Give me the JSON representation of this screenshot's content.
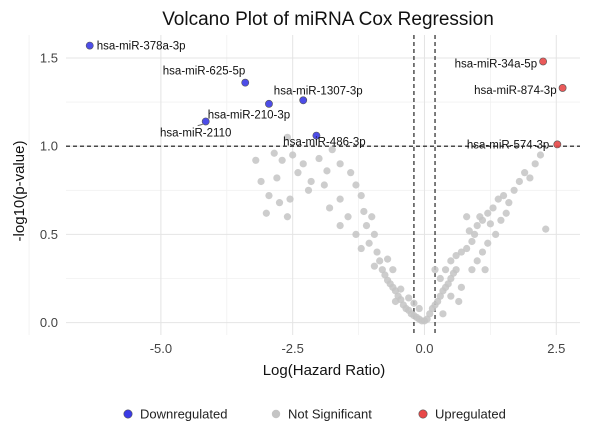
{
  "chart_data": {
    "type": "scatter",
    "title": "Volcano Plot of miRNA Cox Regression",
    "xlabel": "Log(Hazard Ratio)",
    "ylabel": "-log10(p-value)",
    "xlim": [
      -6.8,
      2.95
    ],
    "ylim": [
      -0.07,
      1.63
    ],
    "xticks": [
      -5.0,
      -2.5,
      0.0,
      2.5
    ],
    "xtick_labels": [
      "-5.0",
      "-2.5",
      "0.0",
      "2.5"
    ],
    "yticks": [
      0.0,
      0.5,
      1.0,
      1.5
    ],
    "ytick_labels": [
      "0.0",
      "0.5",
      "1.0",
      "1.5"
    ],
    "grid": true,
    "threshold_lines": {
      "vertical": [
        -0.2,
        0.2
      ],
      "horizontal": [
        1.0
      ]
    },
    "legend": {
      "position": "bottom",
      "entries": [
        {
          "name": "Downregulated",
          "color": "#3a3ae6"
        },
        {
          "name": "Not Significant",
          "color": "#c4c4c4"
        },
        {
          "name": "Upregulated",
          "color": "#e84848"
        }
      ]
    },
    "series": [
      {
        "name": "Downregulated",
        "color": "#3a3ae6",
        "points": [
          {
            "x": -6.35,
            "y": 1.57,
            "label": "hsa-miR-378a-3p"
          },
          {
            "x": -3.4,
            "y": 1.36,
            "label": "hsa-miR-625-5p"
          },
          {
            "x": -2.95,
            "y": 1.24,
            "label": ""
          },
          {
            "x": -2.3,
            "y": 1.26,
            "label": "hsa-miR-1307-3p"
          },
          {
            "x": -4.15,
            "y": 1.14,
            "label": "hsa-miR-210-3p"
          },
          {
            "x": -2.05,
            "y": 1.06,
            "label": "hsa-miR-486-3p"
          }
        ],
        "extra_labels": [
          "hsa-miR-2110"
        ]
      },
      {
        "name": "Upregulated",
        "color": "#e84848",
        "points": [
          {
            "x": 2.25,
            "y": 1.48,
            "label": "hsa-miR-34a-5p"
          },
          {
            "x": 2.62,
            "y": 1.33,
            "label": "hsa-miR-874-3p"
          },
          {
            "x": 2.52,
            "y": 1.01,
            "label": "hsa-miR-574-3p"
          }
        ]
      },
      {
        "name": "Not Significant",
        "color": "#c4c4c4",
        "points": [
          {
            "x": -2.6,
            "y": 1.05
          },
          {
            "x": -2.85,
            "y": 0.96
          },
          {
            "x": -2.7,
            "y": 0.92
          },
          {
            "x": -2.5,
            "y": 0.95
          },
          {
            "x": -2.3,
            "y": 0.9
          },
          {
            "x": -2.0,
            "y": 0.93
          },
          {
            "x": -1.75,
            "y": 0.98
          },
          {
            "x": -1.6,
            "y": 0.9
          },
          {
            "x": -2.4,
            "y": 0.85
          },
          {
            "x": -2.8,
            "y": 0.82
          },
          {
            "x": -2.15,
            "y": 0.8
          },
          {
            "x": -1.85,
            "y": 0.86
          },
          {
            "x": -2.95,
            "y": 0.72
          },
          {
            "x": -2.75,
            "y": 0.68
          },
          {
            "x": -2.55,
            "y": 0.7
          },
          {
            "x": -2.2,
            "y": 0.75
          },
          {
            "x": -1.9,
            "y": 0.78
          },
          {
            "x": -1.6,
            "y": 0.7
          },
          {
            "x": -1.4,
            "y": 0.85
          },
          {
            "x": -1.3,
            "y": 0.78
          },
          {
            "x": -1.2,
            "y": 0.72
          },
          {
            "x": -1.15,
            "y": 0.63
          },
          {
            "x": -1.0,
            "y": 0.6
          },
          {
            "x": -1.1,
            "y": 0.55
          },
          {
            "x": -0.95,
            "y": 0.5
          },
          {
            "x": -1.05,
            "y": 0.45
          },
          {
            "x": -0.9,
            "y": 0.4
          },
          {
            "x": -0.85,
            "y": 0.35
          },
          {
            "x": -0.8,
            "y": 0.3
          },
          {
            "x": -0.75,
            "y": 0.27
          },
          {
            "x": -0.7,
            "y": 0.24
          },
          {
            "x": -0.6,
            "y": 0.2
          },
          {
            "x": -0.55,
            "y": 0.18
          },
          {
            "x": -0.5,
            "y": 0.15
          },
          {
            "x": -0.45,
            "y": 0.13
          },
          {
            "x": -0.4,
            "y": 0.1
          },
          {
            "x": -0.35,
            "y": 0.08
          },
          {
            "x": -0.3,
            "y": 0.07
          },
          {
            "x": -0.25,
            "y": 0.05
          },
          {
            "x": -0.2,
            "y": 0.04
          },
          {
            "x": -0.15,
            "y": 0.03
          },
          {
            "x": -0.1,
            "y": 0.02
          },
          {
            "x": -0.05,
            "y": 0.01
          },
          {
            "x": 0.0,
            "y": 0.01
          },
          {
            "x": 0.05,
            "y": 0.02
          },
          {
            "x": -0.65,
            "y": 0.22
          },
          {
            "x": -0.55,
            "y": 0.12
          },
          {
            "x": -0.45,
            "y": 0.19
          },
          {
            "x": -0.3,
            "y": 0.14
          },
          {
            "x": -0.2,
            "y": 0.11
          },
          {
            "x": -0.1,
            "y": 0.08
          },
          {
            "x": -1.3,
            "y": 0.5
          },
          {
            "x": -1.2,
            "y": 0.42
          },
          {
            "x": -1.45,
            "y": 0.6
          },
          {
            "x": -1.6,
            "y": 0.55
          },
          {
            "x": -3.2,
            "y": 0.92
          },
          {
            "x": -3.1,
            "y": 0.8
          },
          {
            "x": -3.0,
            "y": 0.62
          },
          {
            "x": -2.6,
            "y": 0.6
          },
          {
            "x": -1.8,
            "y": 0.65
          },
          {
            "x": -0.95,
            "y": 0.32
          },
          {
            "x": -0.7,
            "y": 0.36
          },
          {
            "x": -0.6,
            "y": 0.3
          },
          {
            "x": 0.1,
            "y": 0.05
          },
          {
            "x": 0.15,
            "y": 0.08
          },
          {
            "x": 0.2,
            "y": 0.1
          },
          {
            "x": 0.25,
            "y": 0.12
          },
          {
            "x": 0.3,
            "y": 0.15
          },
          {
            "x": 0.35,
            "y": 0.18
          },
          {
            "x": 0.4,
            "y": 0.2
          },
          {
            "x": 0.45,
            "y": 0.22
          },
          {
            "x": 0.5,
            "y": 0.25
          },
          {
            "x": 0.55,
            "y": 0.28
          },
          {
            "x": 0.6,
            "y": 0.3
          },
          {
            "x": 0.3,
            "y": 0.25
          },
          {
            "x": 0.4,
            "y": 0.3
          },
          {
            "x": 0.5,
            "y": 0.35
          },
          {
            "x": 0.6,
            "y": 0.38
          },
          {
            "x": 0.7,
            "y": 0.4
          },
          {
            "x": 0.8,
            "y": 0.42
          },
          {
            "x": 0.9,
            "y": 0.46
          },
          {
            "x": 0.95,
            "y": 0.5
          },
          {
            "x": 1.0,
            "y": 0.55
          },
          {
            "x": 1.05,
            "y": 0.6
          },
          {
            "x": 1.1,
            "y": 0.58
          },
          {
            "x": 1.2,
            "y": 0.62
          },
          {
            "x": 1.25,
            "y": 0.56
          },
          {
            "x": 1.3,
            "y": 0.65
          },
          {
            "x": 1.35,
            "y": 0.5
          },
          {
            "x": 1.4,
            "y": 0.7
          },
          {
            "x": 1.5,
            "y": 0.72
          },
          {
            "x": 1.55,
            "y": 0.62
          },
          {
            "x": 1.6,
            "y": 0.68
          },
          {
            "x": 1.7,
            "y": 0.75
          },
          {
            "x": 1.8,
            "y": 0.8
          },
          {
            "x": 1.9,
            "y": 0.85
          },
          {
            "x": 2.0,
            "y": 0.82
          },
          {
            "x": 2.1,
            "y": 0.9
          },
          {
            "x": 2.2,
            "y": 0.95
          },
          {
            "x": 2.3,
            "y": 0.53
          },
          {
            "x": 0.8,
            "y": 0.6
          },
          {
            "x": 0.9,
            "y": 0.3
          },
          {
            "x": 1.0,
            "y": 0.35
          },
          {
            "x": 1.1,
            "y": 0.4
          },
          {
            "x": 0.7,
            "y": 0.2
          },
          {
            "x": 0.2,
            "y": 0.3
          },
          {
            "x": 0.5,
            "y": 0.15
          },
          {
            "x": 0.65,
            "y": 0.12
          },
          {
            "x": 1.2,
            "y": 0.45
          },
          {
            "x": 1.45,
            "y": 0.58
          },
          {
            "x": 0.35,
            "y": 0.05
          },
          {
            "x": 1.15,
            "y": 0.3
          },
          {
            "x": 0.85,
            "y": 0.52
          }
        ]
      }
    ]
  }
}
